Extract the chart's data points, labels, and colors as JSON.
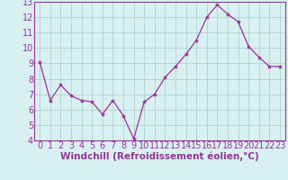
{
  "x": [
    0,
    1,
    2,
    3,
    4,
    5,
    6,
    7,
    8,
    9,
    10,
    11,
    12,
    13,
    14,
    15,
    16,
    17,
    18,
    19,
    20,
    21,
    22,
    23
  ],
  "y": [
    9.1,
    6.6,
    7.6,
    6.9,
    6.6,
    6.5,
    5.7,
    6.6,
    5.6,
    4.1,
    6.5,
    7.0,
    8.1,
    8.8,
    9.6,
    10.5,
    12.0,
    12.8,
    12.2,
    11.7,
    10.1,
    9.4,
    8.8,
    8.8
  ],
  "line_color": "#993399",
  "marker": "*",
  "marker_size": 3,
  "bg_color": "#d8f0f0",
  "grid_color": "#aacccc",
  "xlabel": "Windchill (Refroidissement éolien,°C)",
  "xlim": [
    -0.5,
    23.5
  ],
  "ylim": [
    4,
    13
  ],
  "yticks": [
    4,
    5,
    6,
    7,
    8,
    9,
    10,
    11,
    12,
    13
  ],
  "xticks": [
    0,
    1,
    2,
    3,
    4,
    5,
    6,
    7,
    8,
    9,
    10,
    11,
    12,
    13,
    14,
    15,
    16,
    17,
    18,
    19,
    20,
    21,
    22,
    23
  ],
  "font_color": "#993399",
  "tick_font_size": 7,
  "label_font_size": 7.5
}
